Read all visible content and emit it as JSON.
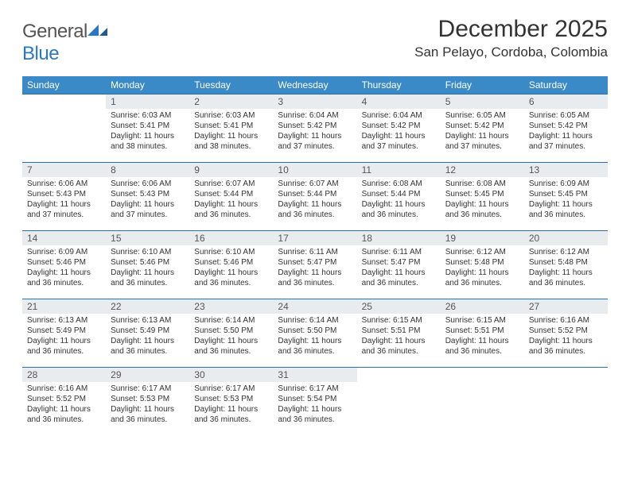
{
  "brand": {
    "part1": "General",
    "part2": "Blue"
  },
  "title": "December 2025",
  "location": "San Pelayo, Cordoba, Colombia",
  "colors": {
    "header_bg": "#3a8ac8",
    "header_text": "#ffffff",
    "daynum_bg": "#e9ecef",
    "rule": "#2b6fa8",
    "brand_gray": "#555555",
    "brand_blue": "#2b78c2",
    "text": "#333333",
    "page_bg": "#ffffff"
  },
  "fonts": {
    "title_size": 30,
    "location_size": 17,
    "dayhead_size": 12,
    "body_size": 10
  },
  "weekdays": [
    "Sunday",
    "Monday",
    "Tuesday",
    "Wednesday",
    "Thursday",
    "Friday",
    "Saturday"
  ],
  "grid": [
    [
      {
        "empty": true
      },
      {
        "n": "1",
        "sr": "6:03 AM",
        "ss": "5:41 PM",
        "dl": "11 hours and 38 minutes."
      },
      {
        "n": "2",
        "sr": "6:03 AM",
        "ss": "5:41 PM",
        "dl": "11 hours and 38 minutes."
      },
      {
        "n": "3",
        "sr": "6:04 AM",
        "ss": "5:42 PM",
        "dl": "11 hours and 37 minutes."
      },
      {
        "n": "4",
        "sr": "6:04 AM",
        "ss": "5:42 PM",
        "dl": "11 hours and 37 minutes."
      },
      {
        "n": "5",
        "sr": "6:05 AM",
        "ss": "5:42 PM",
        "dl": "11 hours and 37 minutes."
      },
      {
        "n": "6",
        "sr": "6:05 AM",
        "ss": "5:42 PM",
        "dl": "11 hours and 37 minutes."
      }
    ],
    [
      {
        "n": "7",
        "sr": "6:06 AM",
        "ss": "5:43 PM",
        "dl": "11 hours and 37 minutes."
      },
      {
        "n": "8",
        "sr": "6:06 AM",
        "ss": "5:43 PM",
        "dl": "11 hours and 37 minutes."
      },
      {
        "n": "9",
        "sr": "6:07 AM",
        "ss": "5:44 PM",
        "dl": "11 hours and 36 minutes."
      },
      {
        "n": "10",
        "sr": "6:07 AM",
        "ss": "5:44 PM",
        "dl": "11 hours and 36 minutes."
      },
      {
        "n": "11",
        "sr": "6:08 AM",
        "ss": "5:44 PM",
        "dl": "11 hours and 36 minutes."
      },
      {
        "n": "12",
        "sr": "6:08 AM",
        "ss": "5:45 PM",
        "dl": "11 hours and 36 minutes."
      },
      {
        "n": "13",
        "sr": "6:09 AM",
        "ss": "5:45 PM",
        "dl": "11 hours and 36 minutes."
      }
    ],
    [
      {
        "n": "14",
        "sr": "6:09 AM",
        "ss": "5:46 PM",
        "dl": "11 hours and 36 minutes."
      },
      {
        "n": "15",
        "sr": "6:10 AM",
        "ss": "5:46 PM",
        "dl": "11 hours and 36 minutes."
      },
      {
        "n": "16",
        "sr": "6:10 AM",
        "ss": "5:46 PM",
        "dl": "11 hours and 36 minutes."
      },
      {
        "n": "17",
        "sr": "6:11 AM",
        "ss": "5:47 PM",
        "dl": "11 hours and 36 minutes."
      },
      {
        "n": "18",
        "sr": "6:11 AM",
        "ss": "5:47 PM",
        "dl": "11 hours and 36 minutes."
      },
      {
        "n": "19",
        "sr": "6:12 AM",
        "ss": "5:48 PM",
        "dl": "11 hours and 36 minutes."
      },
      {
        "n": "20",
        "sr": "6:12 AM",
        "ss": "5:48 PM",
        "dl": "11 hours and 36 minutes."
      }
    ],
    [
      {
        "n": "21",
        "sr": "6:13 AM",
        "ss": "5:49 PM",
        "dl": "11 hours and 36 minutes."
      },
      {
        "n": "22",
        "sr": "6:13 AM",
        "ss": "5:49 PM",
        "dl": "11 hours and 36 minutes."
      },
      {
        "n": "23",
        "sr": "6:14 AM",
        "ss": "5:50 PM",
        "dl": "11 hours and 36 minutes."
      },
      {
        "n": "24",
        "sr": "6:14 AM",
        "ss": "5:50 PM",
        "dl": "11 hours and 36 minutes."
      },
      {
        "n": "25",
        "sr": "6:15 AM",
        "ss": "5:51 PM",
        "dl": "11 hours and 36 minutes."
      },
      {
        "n": "26",
        "sr": "6:15 AM",
        "ss": "5:51 PM",
        "dl": "11 hours and 36 minutes."
      },
      {
        "n": "27",
        "sr": "6:16 AM",
        "ss": "5:52 PM",
        "dl": "11 hours and 36 minutes."
      }
    ],
    [
      {
        "n": "28",
        "sr": "6:16 AM",
        "ss": "5:52 PM",
        "dl": "11 hours and 36 minutes."
      },
      {
        "n": "29",
        "sr": "6:17 AM",
        "ss": "5:53 PM",
        "dl": "11 hours and 36 minutes."
      },
      {
        "n": "30",
        "sr": "6:17 AM",
        "ss": "5:53 PM",
        "dl": "11 hours and 36 minutes."
      },
      {
        "n": "31",
        "sr": "6:17 AM",
        "ss": "5:54 PM",
        "dl": "11 hours and 36 minutes."
      },
      {
        "empty": true
      },
      {
        "empty": true
      },
      {
        "empty": true
      }
    ]
  ],
  "labels": {
    "sunrise": "Sunrise:",
    "sunset": "Sunset:",
    "daylight": "Daylight:"
  }
}
